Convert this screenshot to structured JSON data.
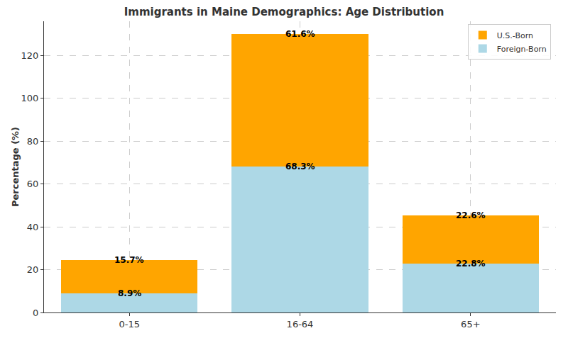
{
  "chart_data": {
    "type": "bar",
    "title": "Immigrants in Maine Demographics: Age Distribution",
    "y_label": "Percentage (%)",
    "categories": [
      "0-15",
      "16-64",
      "65+"
    ],
    "series": [
      {
        "name": "Foreign-Born",
        "color": "#add8e6",
        "values": [
          8.9,
          68.3,
          22.8
        ],
        "value_labels": [
          "8.9%",
          "68.3%",
          "22.8%"
        ]
      },
      {
        "name": "U.S.-Born",
        "color": "#ffa500",
        "values": [
          15.7,
          61.6,
          22.6
        ],
        "value_labels": [
          "15.7%",
          "61.6%",
          "22.6%"
        ]
      }
    ],
    "stacked": true,
    "data_labels": true,
    "ylim": [
      0,
      136
    ],
    "yticks": [
      0,
      20,
      40,
      60,
      80,
      100,
      120
    ],
    "grid": true,
    "legend": "upper right"
  }
}
